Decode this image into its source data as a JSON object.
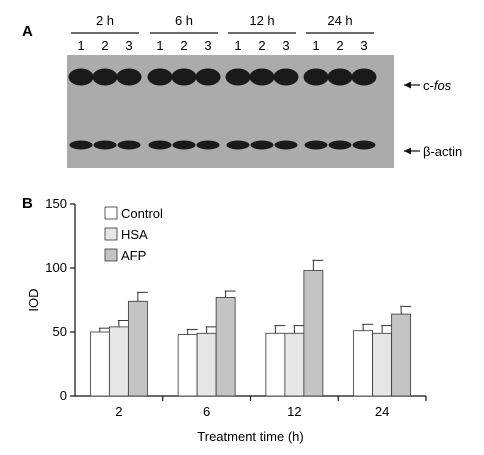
{
  "panel_a": {
    "label": "A",
    "groups": [
      {
        "time": "2 h",
        "lanes": [
          "1",
          "2",
          "3"
        ]
      },
      {
        "time": "6 h",
        "lanes": [
          "1",
          "2",
          "3"
        ]
      },
      {
        "time": "12 h",
        "lanes": [
          "1",
          "2",
          "3"
        ]
      },
      {
        "time": "24 h",
        "lanes": [
          "1",
          "2",
          "3"
        ]
      }
    ],
    "band_labels": {
      "top_prefix": "c-",
      "top_italic": "fos",
      "bottom": "β-actin"
    },
    "colors": {
      "gel": "#ababab",
      "band": "#1a1a1a"
    }
  },
  "panel_b": {
    "label": "B",
    "chart_data": {
      "type": "bar",
      "categories": [
        "2",
        "6",
        "12",
        "24"
      ],
      "series": [
        {
          "name": "Control",
          "values": [
            50,
            48,
            49,
            51
          ],
          "errors": [
            3,
            4,
            6,
            5
          ],
          "color": "#ffffff"
        },
        {
          "name": "HSA",
          "values": [
            54,
            49,
            49,
            49
          ],
          "errors": [
            5,
            5,
            6,
            6
          ],
          "color": "#e6e6e6"
        },
        {
          "name": "AFP",
          "values": [
            74,
            77,
            98,
            64
          ],
          "errors": [
            7,
            5,
            8,
            6
          ],
          "color": "#c4c4c4"
        }
      ],
      "xlabel": "Treatment time (h)",
      "ylabel": "IOD",
      "ylim": [
        0,
        150
      ],
      "yticks": [
        0,
        50,
        100,
        150
      ],
      "legend_position": "top-left",
      "grid": false
    }
  }
}
